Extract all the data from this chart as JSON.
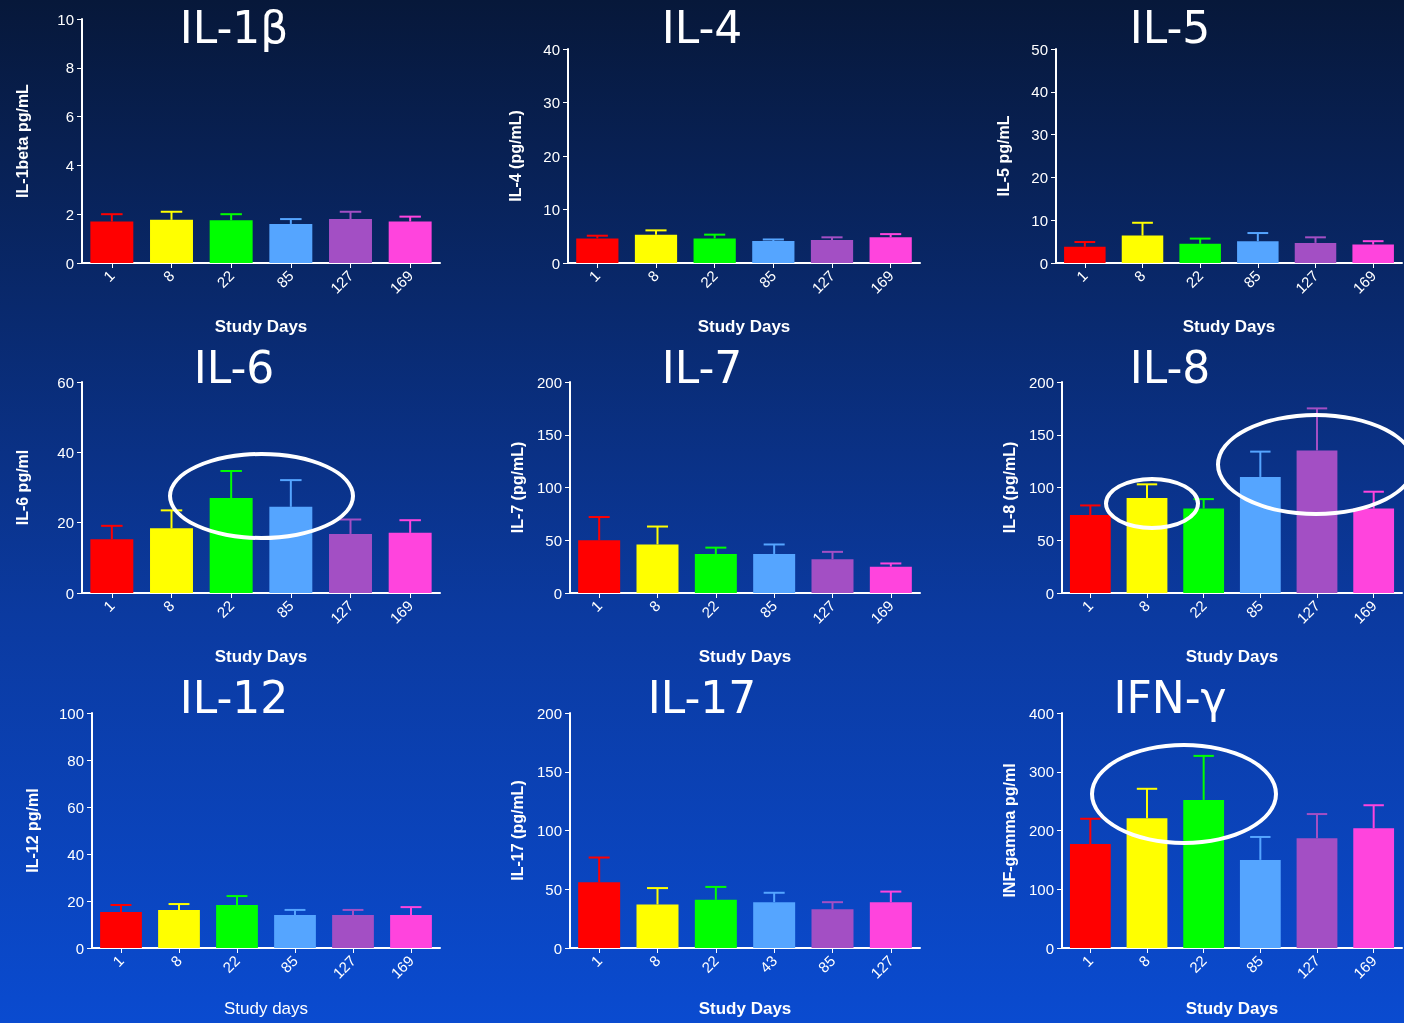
{
  "chart_data": [
    {
      "type": "bar",
      "title": "IL-1β",
      "xlabel": "Study Days",
      "ylabel": "IL-1beta pg/mL",
      "categories": [
        "1",
        "8",
        "22",
        "85",
        "127",
        "169"
      ],
      "values": [
        1.7,
        1.77,
        1.75,
        1.6,
        1.8,
        1.7
      ],
      "errors": [
        [
          1.7,
          2.0
        ],
        [
          1.77,
          2.1
        ],
        [
          1.75,
          2.0
        ],
        [
          1.6,
          1.8
        ],
        [
          1.8,
          2.1
        ],
        [
          1.7,
          1.9
        ]
      ],
      "colors": [
        "#ff0000",
        "#ffff00",
        "#00ff00",
        "#55a5ff",
        "#a34fc4",
        "#ff44dd"
      ],
      "ylim": [
        0,
        10
      ],
      "yticks": [
        0,
        2,
        4,
        6,
        8,
        10
      ]
    },
    {
      "type": "bar",
      "title": "IL-4",
      "xlabel": "Study Days",
      "ylabel": "IL-4 (pg/mL)",
      "categories": [
        "1",
        "8",
        "22",
        "85",
        "127",
        "169"
      ],
      "values": [
        4.6,
        5.3,
        4.6,
        4.1,
        4.3,
        4.8
      ],
      "errors": [
        [
          4.6,
          5.1
        ],
        [
          5.3,
          6.1
        ],
        [
          4.6,
          5.3
        ],
        [
          4.1,
          4.4
        ],
        [
          4.3,
          4.8
        ],
        [
          4.8,
          5.4
        ]
      ],
      "colors": [
        "#ff0000",
        "#ffff00",
        "#00ff00",
        "#55a5ff",
        "#a34fc4",
        "#ff44dd"
      ],
      "ylim": [
        0,
        40
      ],
      "yticks": [
        0,
        10,
        20,
        30,
        40
      ]
    },
    {
      "type": "bar",
      "title": "IL-5",
      "xlabel": "Study Days",
      "ylabel": "IL-5 pg/mL",
      "categories": [
        "1",
        "8",
        "22",
        "85",
        "127",
        "169"
      ],
      "values": [
        3.8,
        6.4,
        4.5,
        5.1,
        4.7,
        4.3
      ],
      "errors": [
        [
          3.8,
          4.9
        ],
        [
          6.4,
          9.4
        ],
        [
          4.5,
          5.7
        ],
        [
          5.1,
          7.0
        ],
        [
          4.7,
          6.0
        ],
        [
          4.3,
          5.1
        ]
      ],
      "colors": [
        "#ff0000",
        "#ffff00",
        "#00ff00",
        "#55a5ff",
        "#a34fc4",
        "#ff44dd"
      ],
      "ylim": [
        0,
        50
      ],
      "yticks": [
        0,
        10,
        20,
        30,
        40,
        50
      ]
    },
    {
      "type": "bar",
      "title": "IL-6",
      "xlabel": "Study Days",
      "ylabel": "IL-6 pg/ml",
      "categories": [
        "1",
        "8",
        "22",
        "85",
        "127",
        "169"
      ],
      "values": [
        15.3,
        18.4,
        27,
        24.5,
        16.8,
        17.1
      ],
      "errors": [
        [
          15.3,
          19.1
        ],
        [
          18.4,
          23.5
        ],
        [
          27,
          34.7
        ],
        [
          24.5,
          32.1
        ],
        [
          16.8,
          20.9
        ],
        [
          17.1,
          20.7
        ]
      ],
      "colors": [
        "#ff0000",
        "#ffff00",
        "#00ff00",
        "#55a5ff",
        "#a34fc4",
        "#ff44dd"
      ],
      "ylim": [
        0,
        60
      ],
      "yticks": [
        0,
        20,
        40,
        60
      ]
    },
    {
      "type": "bar",
      "title": "IL-7",
      "xlabel": "Study Days",
      "ylabel": "IL-7 (pg/mL)",
      "categories": [
        "1",
        "8",
        "22",
        "85",
        "127",
        "169"
      ],
      "values": [
        50,
        46,
        37,
        37,
        32,
        25
      ],
      "errors": [
        [
          50,
          72
        ],
        [
          46,
          63
        ],
        [
          37,
          43
        ],
        [
          37,
          46
        ],
        [
          32,
          39
        ],
        [
          25,
          28
        ]
      ],
      "colors": [
        "#ff0000",
        "#ffff00",
        "#00ff00",
        "#55a5ff",
        "#a34fc4",
        "#ff44dd"
      ],
      "ylim": [
        0,
        200
      ],
      "yticks": [
        0,
        50,
        100,
        150,
        200
      ]
    },
    {
      "type": "bar",
      "title": "IL-8",
      "xlabel": "Study Days",
      "ylabel": "IL-8 (pg/mL)",
      "categories": [
        "1",
        "8",
        "22",
        "85",
        "127",
        "169"
      ],
      "values": [
        74,
        90,
        80,
        110,
        135,
        80
      ],
      "errors": [
        [
          74,
          83
        ],
        [
          90,
          103
        ],
        [
          80,
          89
        ],
        [
          110,
          134
        ],
        [
          135,
          175
        ],
        [
          80,
          96
        ]
      ],
      "colors": [
        "#ff0000",
        "#ffff00",
        "#00ff00",
        "#55a5ff",
        "#a34fc4",
        "#ff44dd"
      ],
      "ylim": [
        0,
        200
      ],
      "yticks": [
        0,
        50,
        100,
        150,
        200
      ]
    },
    {
      "type": "bar",
      "title": "IL-12",
      "xlabel": "Study days",
      "ylabel": "IL-12 pg/ml",
      "categories": [
        "1",
        "8",
        "22",
        "85",
        "127",
        "169"
      ],
      "values": [
        15.3,
        16.2,
        18.3,
        14,
        14,
        14
      ],
      "errors": [
        [
          15.3,
          18.3
        ],
        [
          16.2,
          18.7
        ],
        [
          18.3,
          22.1
        ],
        [
          14,
          16.2
        ],
        [
          14,
          16.2
        ],
        [
          14,
          17.4
        ]
      ],
      "colors": [
        "#ff0000",
        "#ffff00",
        "#00ff00",
        "#55a5ff",
        "#a34fc4",
        "#ff44dd"
      ],
      "ylim": [
        0,
        100
      ],
      "yticks": [
        0,
        20,
        40,
        60,
        80,
        100
      ]
    },
    {
      "type": "bar",
      "title": "IL-17",
      "xlabel": "Study Days",
      "ylabel": "IL-17 (pg/mL)",
      "categories": [
        "1",
        "8",
        "22",
        "43",
        "85",
        "127"
      ],
      "values": [
        56,
        37,
        41,
        39,
        33,
        39
      ],
      "errors": [
        [
          56,
          77
        ],
        [
          37,
          51
        ],
        [
          41,
          52
        ],
        [
          39,
          47
        ],
        [
          33,
          39
        ],
        [
          39,
          48
        ]
      ],
      "colors": [
        "#ff0000",
        "#ffff00",
        "#00ff00",
        "#55a5ff",
        "#a34fc4",
        "#ff44dd"
      ],
      "ylim": [
        0,
        200
      ],
      "yticks": [
        0,
        50,
        100,
        150,
        200
      ]
    },
    {
      "type": "bar",
      "title": "IFN-γ",
      "xlabel": "Study Days",
      "ylabel": "INF-gamma pg/ml",
      "categories": [
        "1",
        "8",
        "22",
        "85",
        "127",
        "169"
      ],
      "values": [
        177,
        221,
        252,
        150,
        187,
        204
      ],
      "errors": [
        [
          177,
          220
        ],
        [
          221,
          271
        ],
        [
          252,
          327
        ],
        [
          150,
          189
        ],
        [
          187,
          228
        ],
        [
          204,
          243
        ]
      ],
      "colors": [
        "#ff0000",
        "#ffff00",
        "#00ff00",
        "#55a5ff",
        "#a34fc4",
        "#ff44dd"
      ],
      "ylim": [
        0,
        400
      ],
      "yticks": [
        0,
        100,
        200,
        300,
        400
      ]
    }
  ]
}
